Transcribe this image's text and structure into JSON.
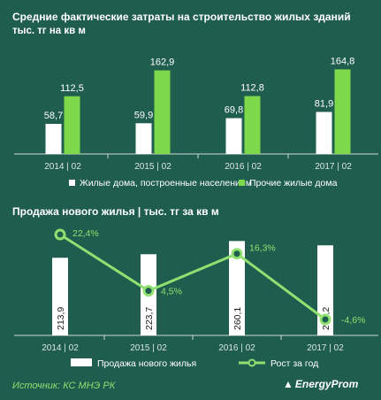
{
  "colors": {
    "background": "#1f5d4e",
    "white": "#ffffff",
    "green": "#7ed94a",
    "line": "#8fe070",
    "text": "#ffffff"
  },
  "chart_data": [
    {
      "type": "bar",
      "title": "Средние фактические  затраты на строительство  жилых зданий",
      "subtitle": "тыс. тг на кв м",
      "categories": [
        "2014 | 02",
        "2015 | 02",
        "2016 | 02",
        "2017 | 02"
      ],
      "series": [
        {
          "name": "Жилые дома, построенные населением",
          "values": [
            58.7,
            59.9,
            69.8,
            81.9
          ],
          "labels": [
            "58,7",
            "59,9",
            "69,8",
            "81,9"
          ]
        },
        {
          "name": "Прочие жилые дома",
          "values": [
            112.5,
            162.9,
            112.8,
            164.8
          ],
          "labels": [
            "112,5",
            "162,9",
            "112,8",
            "164,8"
          ]
        }
      ],
      "ylim": [
        0,
        200
      ],
      "legend_position": "bottom"
    },
    {
      "type": "bar",
      "title": "Продажа нового  жилья  | тыс. тг за кв м",
      "categories": [
        "2014 | 02",
        "2015 | 02",
        "2016 | 02",
        "2017 | 02"
      ],
      "bar_series": {
        "name": "Продажа нового жилья",
        "values": [
          213.9,
          223.7,
          260.1,
          248.2
        ],
        "labels": [
          "213,9",
          "223,7",
          "260,1",
          "248,2"
        ]
      },
      "line_series": {
        "name": "Рост за год",
        "values": [
          22.4,
          4.5,
          16.3,
          -4.6
        ],
        "labels": [
          "22,4%",
          "4,5%",
          "16,3%",
          "-4,6%"
        ]
      },
      "legend_position": "bottom"
    }
  ],
  "footer": {
    "source": "Источник: КС МНЭ РК",
    "logo": "EnergyProm"
  }
}
